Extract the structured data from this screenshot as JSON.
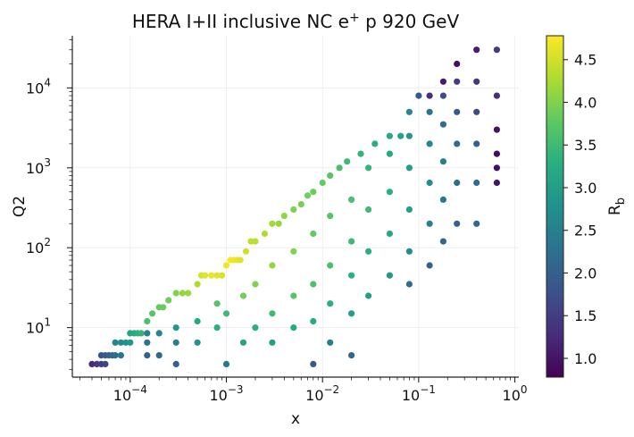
{
  "chart_data": {
    "type": "scatter",
    "title": "HERA I+II inclusive NC e⁺ p 920 GeV",
    "xlabel": "x",
    "ylabel": "Q2",
    "xscale": "log",
    "yscale": "log",
    "xlim": [
      2.5e-05,
      1.1
    ],
    "ylim": [
      2.4,
      45000
    ],
    "x_ticks": [
      {
        "value": 0.0001,
        "base": "10",
        "exp": "−4"
      },
      {
        "value": 0.001,
        "base": "10",
        "exp": "−3"
      },
      {
        "value": 0.01,
        "base": "10",
        "exp": "−2"
      },
      {
        "value": 0.1,
        "base": "10",
        "exp": "−1"
      },
      {
        "value": 1,
        "base": "10",
        "exp": "0"
      }
    ],
    "y_ticks": [
      {
        "value": 10,
        "base": "10",
        "exp": "1"
      },
      {
        "value": 100,
        "base": "10",
        "exp": "2"
      },
      {
        "value": 1000,
        "base": "10",
        "exp": "3"
      },
      {
        "value": 10000,
        "base": "10",
        "exp": "4"
      }
    ],
    "grid": true,
    "colorbar": {
      "label": "R",
      "label_sub": "b",
      "colormap": "viridis",
      "vmin": 0.78,
      "vmax": 4.78,
      "ticks": [
        1.0,
        1.5,
        2.0,
        2.5,
        3.0,
        3.5,
        4.0,
        4.5
      ],
      "tick_labels": [
        "1.0",
        "1.5",
        "2.0",
        "2.5",
        "3.0",
        "3.5",
        "4.0",
        "4.5"
      ]
    },
    "points_note": "x, Q2, R_b triples (approximate read-off)",
    "points": [
      [
        4e-05,
        3.5,
        1.25
      ],
      [
        4.5e-05,
        3.5,
        1.4
      ],
      [
        5e-05,
        3.5,
        1.5
      ],
      [
        5.5e-05,
        3.5,
        1.6
      ],
      [
        5e-05,
        4.5,
        1.8
      ],
      [
        5.5e-05,
        4.5,
        1.9
      ],
      [
        6e-05,
        4.5,
        2.0
      ],
      [
        6.5e-05,
        4.5,
        2.1
      ],
      [
        7e-05,
        4.5,
        2.2
      ],
      [
        8e-05,
        4.5,
        2.3
      ],
      [
        7e-05,
        6.5,
        2.6
      ],
      [
        8e-05,
        6.5,
        2.7
      ],
      [
        9e-05,
        6.5,
        2.8
      ],
      [
        0.0001,
        6.5,
        2.9
      ],
      [
        0.0001,
        8.5,
        3.1
      ],
      [
        0.00011,
        8.5,
        3.2
      ],
      [
        0.00012,
        8.5,
        3.3
      ],
      [
        0.00013,
        8.5,
        3.4
      ],
      [
        0.00015,
        12,
        3.6
      ],
      [
        0.00017,
        15,
        3.7
      ],
      [
        0.0002,
        18,
        3.8
      ],
      [
        0.00022,
        18,
        3.85
      ],
      [
        0.00025,
        22,
        3.9
      ],
      [
        0.0003,
        27,
        4.0
      ],
      [
        0.00035,
        27,
        4.1
      ],
      [
        0.0004,
        27,
        4.15
      ],
      [
        0.0005,
        35,
        4.3
      ],
      [
        0.00055,
        45,
        4.5
      ],
      [
        0.0006,
        45,
        4.6
      ],
      [
        0.0007,
        45,
        4.65
      ],
      [
        0.0008,
        45,
        4.6
      ],
      [
        0.0009,
        45,
        4.55
      ],
      [
        0.001,
        60,
        4.7
      ],
      [
        0.0011,
        70,
        4.75
      ],
      [
        0.0012,
        70,
        4.7
      ],
      [
        0.0013,
        70,
        4.65
      ],
      [
        0.0014,
        70,
        4.6
      ],
      [
        0.0016,
        90,
        4.5
      ],
      [
        0.0018,
        120,
        4.4
      ],
      [
        0.002,
        120,
        4.35
      ],
      [
        0.0025,
        150,
        4.3
      ],
      [
        0.003,
        200,
        4.2
      ],
      [
        0.0035,
        200,
        4.15
      ],
      [
        0.004,
        250,
        4.1
      ],
      [
        0.005,
        300,
        4.0
      ],
      [
        0.006,
        350,
        3.95
      ],
      [
        0.007,
        450,
        3.9
      ],
      [
        0.008,
        500,
        3.85
      ],
      [
        0.01,
        650,
        3.8
      ],
      [
        0.012,
        800,
        3.7
      ],
      [
        0.015,
        1000,
        3.6
      ],
      [
        0.018,
        1200,
        3.5
      ],
      [
        0.025,
        1500,
        3.4
      ],
      [
        0.035,
        2000,
        3.3
      ],
      [
        0.05,
        2500,
        3.2
      ],
      [
        0.065,
        2500,
        3.1
      ],
      [
        0.08,
        5000,
        2.6
      ],
      [
        0.1,
        8000,
        1.9
      ],
      [
        0.13,
        8000,
        1.3
      ],
      [
        0.18,
        12000,
        1.1
      ],
      [
        0.25,
        20000,
        0.95
      ],
      [
        0.4,
        30000,
        1.1
      ],
      [
        0.65,
        30000,
        1.5
      ],
      [
        0.00015,
        4.5,
        2.0
      ],
      [
        0.00015,
        6.5,
        2.3
      ],
      [
        0.00015,
        8.5,
        2.5
      ],
      [
        0.0002,
        4.5,
        2.1
      ],
      [
        0.0002,
        8.5,
        2.6
      ],
      [
        0.0003,
        3.5,
        2.0
      ],
      [
        0.0003,
        6.5,
        2.5
      ],
      [
        0.0003,
        10,
        2.9
      ],
      [
        0.0005,
        6.5,
        2.8
      ],
      [
        0.0005,
        12,
        3.2
      ],
      [
        0.0008,
        10,
        3.3
      ],
      [
        0.0008,
        20,
        3.7
      ],
      [
        0.001,
        3.5,
        2.4
      ],
      [
        0.001,
        15,
        3.5
      ],
      [
        0.0015,
        6.5,
        3.1
      ],
      [
        0.0015,
        25,
        3.9
      ],
      [
        0.002,
        10,
        3.3
      ],
      [
        0.002,
        35,
        4.0
      ],
      [
        0.003,
        6.5,
        3.0
      ],
      [
        0.003,
        15,
        3.5
      ],
      [
        0.003,
        60,
        4.1
      ],
      [
        0.005,
        10,
        3.2
      ],
      [
        0.005,
        25,
        3.7
      ],
      [
        0.005,
        90,
        4.0
      ],
      [
        0.008,
        3.5,
        1.9
      ],
      [
        0.008,
        12,
        3.2
      ],
      [
        0.008,
        35,
        3.6
      ],
      [
        0.008,
        150,
        3.8
      ],
      [
        0.012,
        6.5,
        2.5
      ],
      [
        0.012,
        20,
        3.3
      ],
      [
        0.012,
        60,
        3.6
      ],
      [
        0.012,
        250,
        3.7
      ],
      [
        0.02,
        4.5,
        2.1
      ],
      [
        0.02,
        15,
        3.0
      ],
      [
        0.02,
        45,
        3.3
      ],
      [
        0.02,
        120,
        3.5
      ],
      [
        0.02,
        400,
        3.6
      ],
      [
        0.03,
        25,
        3.0
      ],
      [
        0.03,
        90,
        3.3
      ],
      [
        0.03,
        300,
        3.5
      ],
      [
        0.03,
        1000,
        3.4
      ],
      [
        0.05,
        45,
        2.9
      ],
      [
        0.05,
        150,
        3.2
      ],
      [
        0.05,
        500,
        3.3
      ],
      [
        0.05,
        1500,
        3.2
      ],
      [
        0.08,
        35,
        2.2
      ],
      [
        0.08,
        90,
        2.7
      ],
      [
        0.08,
        300,
        3.0
      ],
      [
        0.08,
        1000,
        3.0
      ],
      [
        0.08,
        2500,
        2.9
      ],
      [
        0.13,
        60,
        2.0
      ],
      [
        0.13,
        200,
        2.5
      ],
      [
        0.13,
        650,
        2.7
      ],
      [
        0.13,
        2000,
        2.6
      ],
      [
        0.13,
        5000,
        2.3
      ],
      [
        0.18,
        120,
        2.1
      ],
      [
        0.18,
        400,
        2.4
      ],
      [
        0.18,
        1200,
        2.5
      ],
      [
        0.18,
        3500,
        2.2
      ],
      [
        0.18,
        8000,
        1.7
      ],
      [
        0.25,
        200,
        2.0
      ],
      [
        0.25,
        650,
        2.2
      ],
      [
        0.25,
        2000,
        2.2
      ],
      [
        0.25,
        5000,
        1.9
      ],
      [
        0.25,
        12000,
        1.5
      ],
      [
        0.4,
        200,
        2.1
      ],
      [
        0.4,
        650,
        2.2
      ],
      [
        0.4,
        2000,
        2.0
      ],
      [
        0.4,
        5000,
        1.7
      ],
      [
        0.4,
        12000,
        1.4
      ],
      [
        0.65,
        650,
        1.0
      ],
      [
        0.65,
        1000,
        0.95
      ],
      [
        0.65,
        1500,
        0.9
      ],
      [
        0.65,
        3000,
        1.0
      ],
      [
        0.65,
        8000,
        1.3
      ]
    ]
  }
}
